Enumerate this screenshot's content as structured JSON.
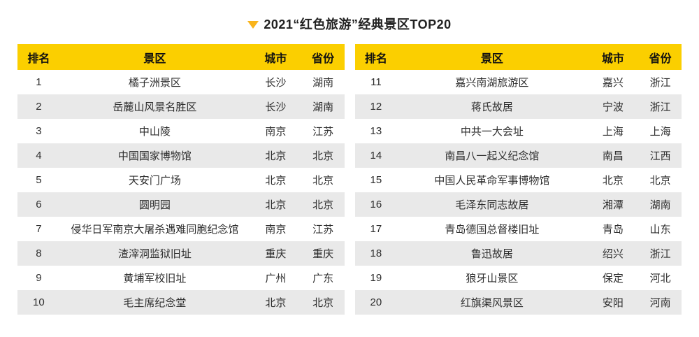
{
  "colors": {
    "header_bg": "#FBCF00",
    "row_alt_bg": "#E9E9E9",
    "triangle": "#F9B41C",
    "text": "#2D2D2D",
    "header_text": "#111111",
    "title_text": "#222222"
  },
  "chart_data": {
    "type": "table",
    "title": "2021“红色旅游”经典景区TOP20",
    "columns": [
      "排名",
      "景区",
      "城市",
      "省份"
    ],
    "rows": [
      [
        "1",
        "橘子洲景区",
        "长沙",
        "湖南"
      ],
      [
        "2",
        "岳麓山风景名胜区",
        "长沙",
        "湖南"
      ],
      [
        "3",
        "中山陵",
        "南京",
        "江苏"
      ],
      [
        "4",
        "中国国家博物馆",
        "北京",
        "北京"
      ],
      [
        "5",
        "天安门广场",
        "北京",
        "北京"
      ],
      [
        "6",
        "圆明园",
        "北京",
        "北京"
      ],
      [
        "7",
        "侵华日军南京大屠杀遇难同胞纪念馆",
        "南京",
        "江苏"
      ],
      [
        "8",
        "渣滓洞监狱旧址",
        "重庆",
        "重庆"
      ],
      [
        "9",
        "黄埔军校旧址",
        "广州",
        "广东"
      ],
      [
        "10",
        "毛主席纪念堂",
        "北京",
        "北京"
      ],
      [
        "11",
        "嘉兴南湖旅游区",
        "嘉兴",
        "浙江"
      ],
      [
        "12",
        "蒋氏故居",
        "宁波",
        "浙江"
      ],
      [
        "13",
        "中共一大会址",
        "上海",
        "上海"
      ],
      [
        "14",
        "南昌八一起义纪念馆",
        "南昌",
        "江西"
      ],
      [
        "15",
        "中国人民革命军事博物馆",
        "北京",
        "北京"
      ],
      [
        "16",
        "毛泽东同志故居",
        "湘潭",
        "湖南"
      ],
      [
        "17",
        "青岛德国总督楼旧址",
        "青岛",
        "山东"
      ],
      [
        "18",
        "鲁迅故居",
        "绍兴",
        "浙江"
      ],
      [
        "19",
        "狼牙山景区",
        "保定",
        "河北"
      ],
      [
        "20",
        "红旗渠风景区",
        "安阳",
        "河南"
      ]
    ],
    "layout": {
      "split": "two side-by-side tables, ranks 1-10 left, 11-20 right",
      "zebra_striping": true,
      "header_style": "yellow background, bold black text"
    }
  }
}
